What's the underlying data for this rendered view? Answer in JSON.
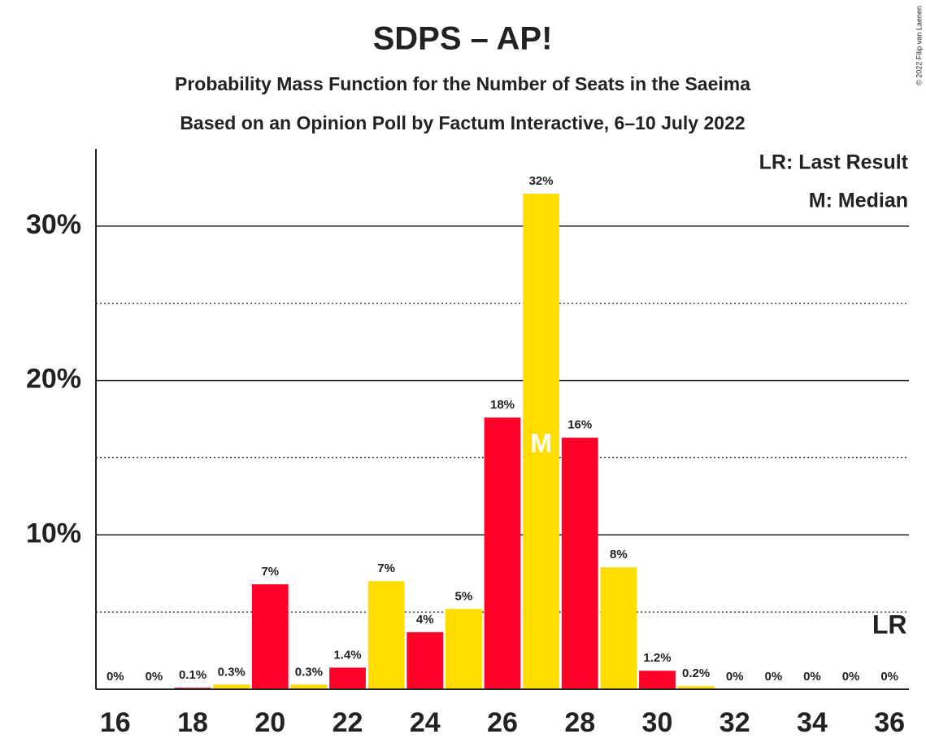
{
  "chart_data": {
    "type": "bar",
    "title": "SDPS – AP!",
    "subtitle": "Probability Mass Function for the Number of Seats in the Saeima",
    "subtitle2": "Based on an Opinion Poll by Factum Interactive, 6–10 July 2022",
    "copyright": "© 2022 Filip van Laenen",
    "legend": [
      "LR: Last Result",
      "M: Median"
    ],
    "x": [
      16,
      17,
      18,
      19,
      20,
      21,
      22,
      23,
      24,
      25,
      26,
      27,
      28,
      29,
      30,
      31,
      32,
      33,
      34,
      35,
      36
    ],
    "values": [
      0,
      0,
      0.1,
      0.3,
      6.8,
      0.3,
      1.4,
      7.0,
      3.7,
      5.2,
      17.6,
      32.1,
      16.3,
      7.9,
      1.2,
      0.2,
      0,
      0,
      0,
      0,
      0
    ],
    "value_labels": [
      "0%",
      "0%",
      "0.1%",
      "0.3%",
      "7%",
      "0.3%",
      "1.4%",
      "7%",
      "4%",
      "5%",
      "18%",
      "32%",
      "16%",
      "8%",
      "1.2%",
      "0.2%",
      "0%",
      "0%",
      "0%",
      "0%",
      "0%"
    ],
    "colors": [
      "#ff0028",
      "#ffdd00",
      "#ff0028",
      "#ffdd00",
      "#ff0028",
      "#ffdd00",
      "#ff0028",
      "#ffdd00",
      "#ff0028",
      "#ffdd00",
      "#ff0028",
      "#ffdd00",
      "#ff0028",
      "#ffdd00",
      "#ff0028",
      "#ffdd00",
      "#ff0028",
      "#ffdd00",
      "#ff0028",
      "#ffdd00",
      "#ff0028"
    ],
    "xlim": [
      15.5,
      36.5
    ],
    "xticks": [
      16,
      18,
      20,
      22,
      24,
      26,
      28,
      30,
      32,
      34,
      36
    ],
    "ylim": [
      0,
      35
    ],
    "yticks": [
      {
        "value": 10,
        "label": "10%"
      },
      {
        "value": 20,
        "label": "20%"
      },
      {
        "value": 30,
        "label": "30%"
      }
    ],
    "minor_yticks": [
      5,
      15,
      25
    ],
    "median": {
      "x": 27,
      "label": "M"
    },
    "last_result": {
      "x": 36,
      "label": "LR"
    }
  }
}
